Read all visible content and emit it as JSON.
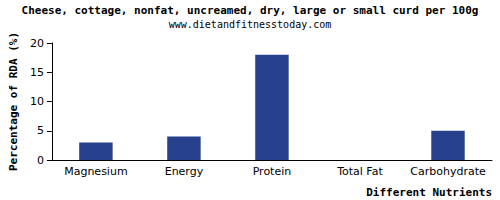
{
  "chart_data": {
    "type": "bar",
    "title": "Cheese, cottage, nonfat, uncreamed, dry, large or small curd per 100g",
    "subtitle": "www.dietandfitnesstoday.com",
    "x_label": "Different Nutrients",
    "y_label": "Percentage of RDA (%)",
    "categories": [
      "Magnesium",
      "Energy",
      "Protein",
      "Total Fat",
      "Carbohydrate"
    ],
    "values": [
      3,
      4,
      18,
      0,
      5
    ],
    "color": "#27408b",
    "ylim": [
      0,
      20
    ],
    "yticks": [
      0,
      5,
      10,
      15,
      20
    ],
    "grid": false
  }
}
